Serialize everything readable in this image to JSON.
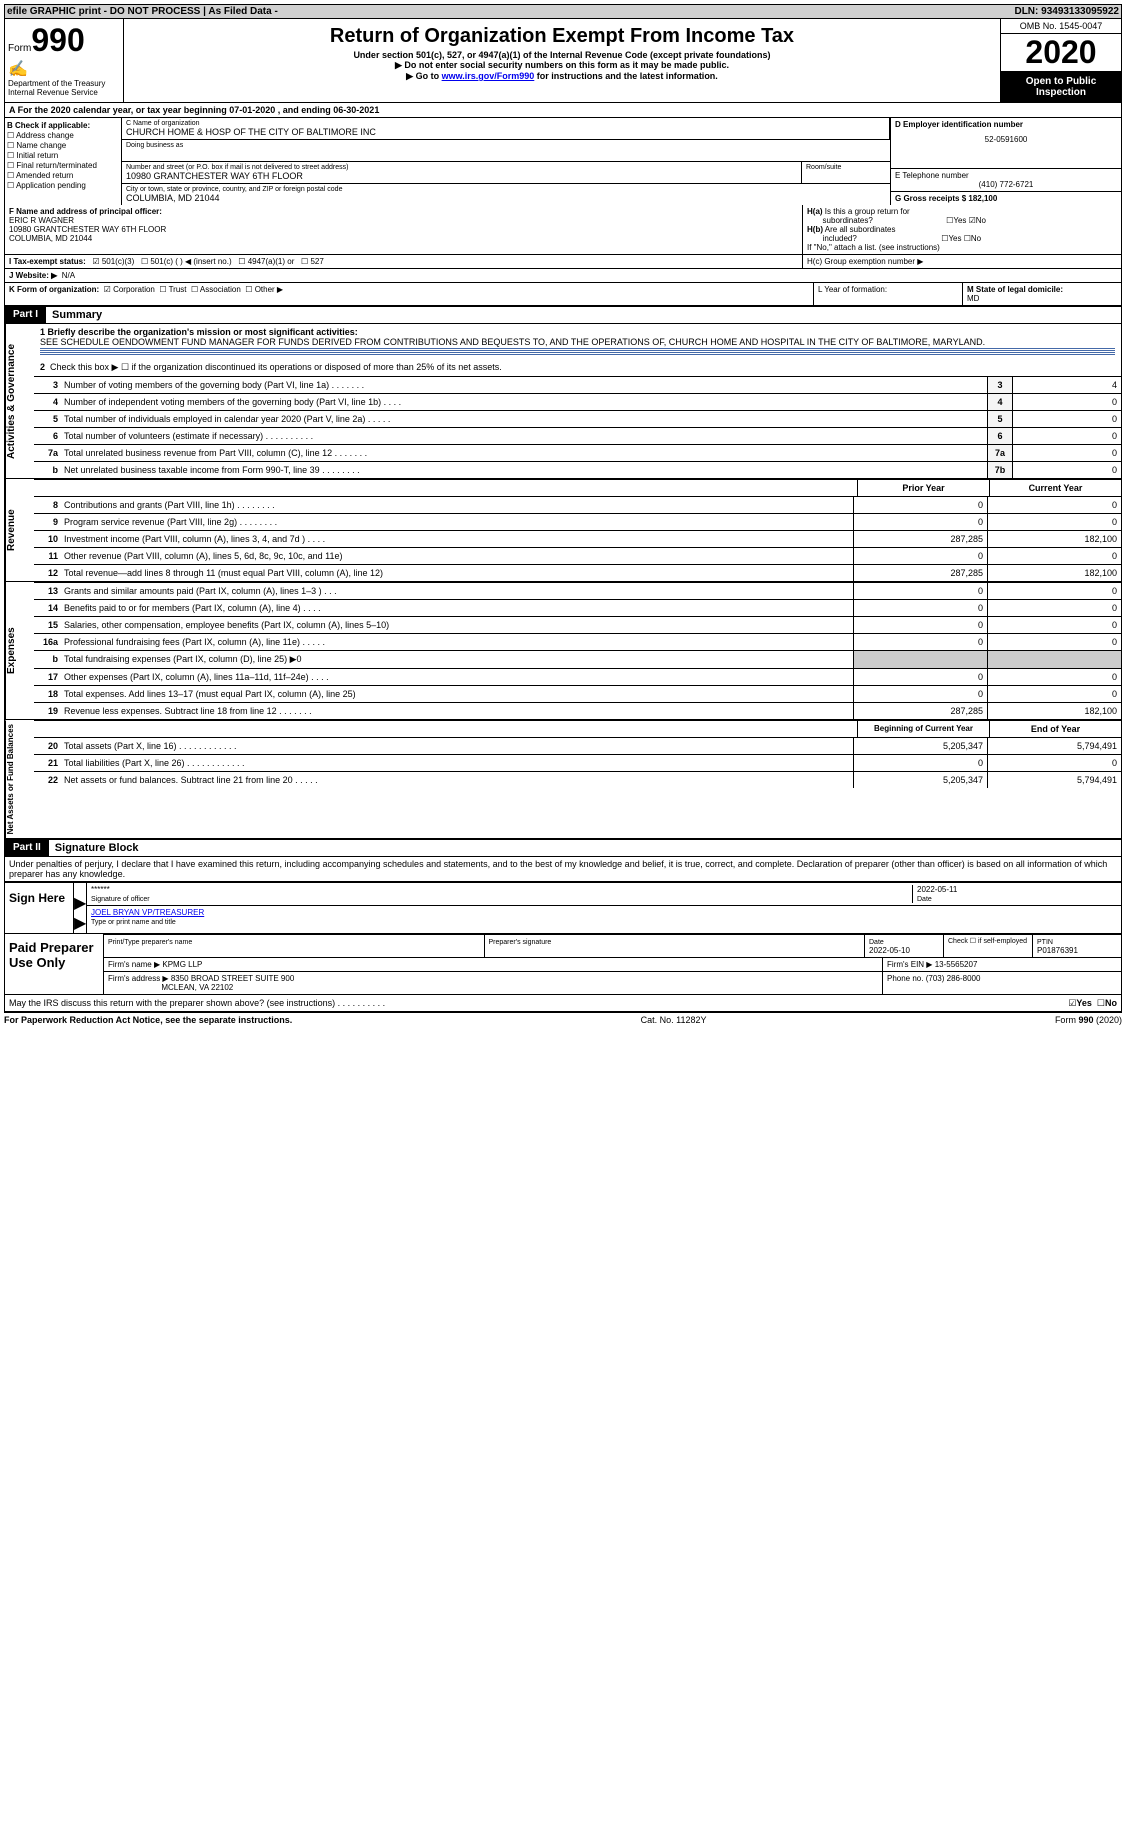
{
  "topbar": {
    "left": "efile GRAPHIC print - DO NOT PROCESS",
    "mid": "As Filed Data -",
    "right": "DLN: 93493133095922"
  },
  "header": {
    "form_prefix": "Form",
    "form_number": "990",
    "dept1": "Department of the Treasury",
    "dept2": "Internal Revenue Service",
    "title": "Return of Organization Exempt From Income Tax",
    "sub1": "Under section 501(c), 527, or 4947(a)(1) of the Internal Revenue Code (except private foundations)",
    "sub2": "▶ Do not enter social security numbers on this form as it may be made public.",
    "sub3_pre": "▶ Go to ",
    "sub3_link": "www.irs.gov/Form990",
    "sub3_post": " for instructions and the latest information.",
    "omb": "OMB No. 1545-0047",
    "year": "2020",
    "open": "Open to Public Inspection"
  },
  "A": "A  For the 2020 calendar year, or tax year beginning 07-01-2020  , and ending 06-30-2021",
  "B": {
    "title": "B Check if applicable:",
    "items": [
      "Address change",
      "Name change",
      "Initial return",
      "Final return/terminated",
      "Amended return",
      "Application pending"
    ]
  },
  "C": {
    "name_label": "C Name of organization",
    "name": "CHURCH HOME & HOSP OF THE CITY OF BALTIMORE INC",
    "dba_label": "Doing business as",
    "addr_label": "Number and street (or P.O. box if mail is not delivered to street address)",
    "room_label": "Room/suite",
    "addr": "10980 GRANTCHESTER WAY 6TH FLOOR",
    "city_label": "City or town, state or province, country, and ZIP or foreign postal code",
    "city": "COLUMBIA, MD  21044"
  },
  "D": {
    "label": "D Employer identification number",
    "val": "52-0591600"
  },
  "E": {
    "label": "E Telephone number",
    "val": "(410) 772-6721"
  },
  "G": {
    "label": "G Gross receipts $ 182,100"
  },
  "F": {
    "label": "F  Name and address of principal officer:",
    "name": "ERIC R WAGNER",
    "addr1": "10980 GRANTCHESTER WAY 6TH FLOOR",
    "addr2": "COLUMBIA, MD  21044"
  },
  "H": {
    "a": "H(a) Is this a group return for subordinates?",
    "b": "H(b) Are all subordinates included?",
    "note": "If \"No,\" attach a list. (see instructions)",
    "c": "H(c) Group exemption number ▶"
  },
  "I": {
    "label": "I  Tax-exempt status:",
    "opts": [
      "501(c)(3)",
      "501(c) (  ) ◀ (insert no.)",
      "4947(a)(1) or",
      "527"
    ]
  },
  "J": {
    "label": "J  Website: ▶",
    "val": "N/A"
  },
  "K": {
    "label": "K Form of organization:",
    "opts": [
      "Corporation",
      "Trust",
      "Association",
      "Other ▶"
    ]
  },
  "L": "L Year of formation:",
  "M": {
    "label": "M State of legal domicile:",
    "val": "MD"
  },
  "part1": {
    "tab": "Part I",
    "title": "Summary"
  },
  "gov": {
    "label": "Activities & Governance",
    "l1": "1 Briefly describe the organization's mission or most significant activities:",
    "l1_text": "SEE SCHEDULE OENDOWMENT FUND MANAGER FOR FUNDS DERIVED FROM CONTRIBUTIONS AND BEQUESTS TO, AND THE OPERATIONS OF, CHURCH HOME AND HOSPITAL IN THE CITY OF BALTIMORE, MARYLAND.",
    "l2": "Check this box ▶ ☐ if the organization discontinued its operations or disposed of more than 25% of its net assets.",
    "lines": [
      {
        "n": "3",
        "t": "Number of voting members of the governing body (Part VI, line 1a)   .   .   .   .   .   .   .",
        "box": "3",
        "v": "4"
      },
      {
        "n": "4",
        "t": "Number of independent voting members of the governing body (Part VI, line 1b)   .   .   .   .",
        "box": "4",
        "v": "0"
      },
      {
        "n": "5",
        "t": "Total number of individuals employed in calendar year 2020 (Part V, line 2a)   .   .   .   .   .",
        "box": "5",
        "v": "0"
      },
      {
        "n": "6",
        "t": "Total number of volunteers (estimate if necessary)   .   .   .   .   .   .   .   .   .   .",
        "box": "6",
        "v": "0"
      },
      {
        "n": "7a",
        "t": "Total unrelated business revenue from Part VIII, column (C), line 12   .   .   .   .   .   .   .",
        "box": "7a",
        "v": "0"
      },
      {
        "n": "b",
        "t": "Net unrelated business taxable income from Form 990-T, line 39   .   .   .   .   .   .   .   .",
        "box": "7b",
        "v": "0"
      }
    ]
  },
  "rev": {
    "label": "Revenue",
    "h1": "Prior Year",
    "h2": "Current Year",
    "lines": [
      {
        "n": "8",
        "t": "Contributions and grants (Part VIII, line 1h)   .   .   .   .   .   .   .   .",
        "v1": "0",
        "v2": "0"
      },
      {
        "n": "9",
        "t": "Program service revenue (Part VIII, line 2g)   .   .   .   .   .   .   .   .",
        "v1": "0",
        "v2": "0"
      },
      {
        "n": "10",
        "t": "Investment income (Part VIII, column (A), lines 3, 4, and 7d )   .   .   .   .",
        "v1": "287,285",
        "v2": "182,100"
      },
      {
        "n": "11",
        "t": "Other revenue (Part VIII, column (A), lines 5, 6d, 8c, 9c, 10c, and 11e)",
        "v1": "0",
        "v2": "0"
      },
      {
        "n": "12",
        "t": "Total revenue—add lines 8 through 11 (must equal Part VIII, column (A), line 12)",
        "v1": "287,285",
        "v2": "182,100"
      }
    ]
  },
  "exp": {
    "label": "Expenses",
    "lines": [
      {
        "n": "13",
        "t": "Grants and similar amounts paid (Part IX, column (A), lines 1–3 )   .   .   .",
        "v1": "0",
        "v2": "0"
      },
      {
        "n": "14",
        "t": "Benefits paid to or for members (Part IX, column (A), line 4)   .   .   .   .",
        "v1": "0",
        "v2": "0"
      },
      {
        "n": "15",
        "t": "Salaries, other compensation, employee benefits (Part IX, column (A), lines 5–10)",
        "v1": "0",
        "v2": "0"
      },
      {
        "n": "16a",
        "t": "Professional fundraising fees (Part IX, column (A), line 11e)   .   .   .   .   .",
        "v1": "0",
        "v2": "0"
      },
      {
        "n": "b",
        "t": "Total fundraising expenses (Part IX, column (D), line 25) ▶0",
        "v1": "",
        "v2": "",
        "gray": true
      },
      {
        "n": "17",
        "t": "Other expenses (Part IX, column (A), lines 11a–11d, 11f–24e)   .   .   .   .",
        "v1": "0",
        "v2": "0"
      },
      {
        "n": "18",
        "t": "Total expenses. Add lines 13–17 (must equal Part IX, column (A), line 25)",
        "v1": "0",
        "v2": "0"
      },
      {
        "n": "19",
        "t": "Revenue less expenses. Subtract line 18 from line 12   .   .   .   .   .   .   .",
        "v1": "287,285",
        "v2": "182,100"
      }
    ]
  },
  "net": {
    "label": "Net Assets or Fund Balances",
    "h1": "Beginning of Current Year",
    "h2": "End of Year",
    "lines": [
      {
        "n": "20",
        "t": "Total assets (Part X, line 16)   .   .   .   .   .   .   .   .   .   .   .   .",
        "v1": "5,205,347",
        "v2": "5,794,491"
      },
      {
        "n": "21",
        "t": "Total liabilities (Part X, line 26)   .   .   .   .   .   .   .   .   .   .   .   .",
        "v1": "0",
        "v2": "0"
      },
      {
        "n": "22",
        "t": "Net assets or fund balances. Subtract line 21 from line 20   .   .   .   .   .",
        "v1": "5,205,347",
        "v2": "5,794,491"
      }
    ]
  },
  "part2": {
    "tab": "Part II",
    "title": "Signature Block"
  },
  "sig": {
    "penalty": "Under penalties of perjury, I declare that I have examined this return, including accompanying schedules and statements, and to the best of my knowledge and belief, it is true, correct, and complete. Declaration of preparer (other than officer) is based on all information of which preparer has any knowledge.",
    "sign_here": "Sign Here",
    "stars": "******",
    "sig_officer": "Signature of officer",
    "date": "2022-05-11",
    "date_label": "Date",
    "name": "JOEL BRYAN  VP/TREASURER",
    "name_label": "Type or print name and title"
  },
  "prep": {
    "label": "Paid Preparer Use Only",
    "h1": "Print/Type preparer's name",
    "h2": "Preparer's signature",
    "h3": "Date",
    "date": "2022-05-10",
    "h4": "Check ☐ if self-employed",
    "h5": "PTIN",
    "ptin": "P01876391",
    "firm_name_l": "Firm's name    ▶",
    "firm_name": "KPMG LLP",
    "firm_ein_l": "Firm's EIN ▶",
    "firm_ein": "13-5565207",
    "firm_addr_l": "Firm's address ▶",
    "firm_addr1": "8350 BROAD STREET SUITE 900",
    "firm_addr2": "MCLEAN, VA  22102",
    "phone_l": "Phone no.",
    "phone": "(703) 286-8000"
  },
  "discuss": "May the IRS discuss this return with the preparer shown above? (see instructions)   .   .   .   .   .   .   .   .   .   .",
  "footer": {
    "left": "For Paperwork Reduction Act Notice, see the separate instructions.",
    "mid": "Cat. No. 11282Y",
    "right": "Form 990 (2020)"
  }
}
